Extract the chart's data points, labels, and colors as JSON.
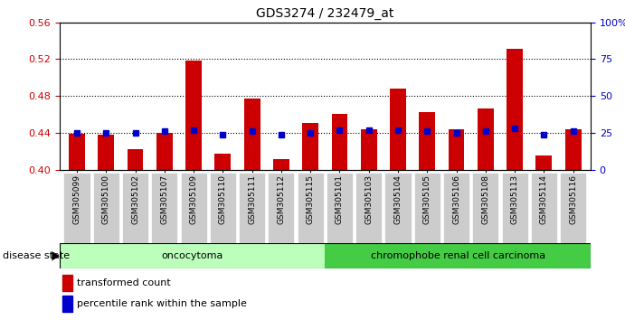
{
  "title": "GDS3274 / 232479_at",
  "samples": [
    "GSM305099",
    "GSM305100",
    "GSM305102",
    "GSM305107",
    "GSM305109",
    "GSM305110",
    "GSM305111",
    "GSM305112",
    "GSM305115",
    "GSM305101",
    "GSM305103",
    "GSM305104",
    "GSM305105",
    "GSM305106",
    "GSM305108",
    "GSM305113",
    "GSM305114",
    "GSM305116"
  ],
  "bar_values": [
    0.439,
    0.438,
    0.422,
    0.44,
    0.519,
    0.417,
    0.477,
    0.411,
    0.451,
    0.461,
    0.444,
    0.488,
    0.463,
    0.444,
    0.466,
    0.531,
    0.415,
    0.444
  ],
  "percentile_values": [
    25,
    25,
    25,
    26,
    27,
    24,
    26,
    24,
    25,
    27,
    27,
    27,
    26,
    25,
    26,
    28,
    24,
    26
  ],
  "bar_bottom": 0.4,
  "bar_color": "#cc0000",
  "percentile_color": "#0000cc",
  "ylim_left": [
    0.4,
    0.56
  ],
  "ylim_right": [
    0,
    100
  ],
  "yticks_left": [
    0.4,
    0.44,
    0.48,
    0.52,
    0.56
  ],
  "yticks_right": [
    0,
    25,
    50,
    75,
    100
  ],
  "ytick_labels_right": [
    "0",
    "25",
    "50",
    "75",
    "100%"
  ],
  "groups": [
    {
      "label": "oncocytoma",
      "start": 0,
      "end": 9,
      "color": "#bbffbb"
    },
    {
      "label": "chromophobe renal cell carcinoma",
      "start": 9,
      "end": 18,
      "color": "#44cc44"
    }
  ],
  "disease_state_label": "disease state",
  "legend_bar_label": "transformed count",
  "legend_pct_label": "percentile rank within the sample",
  "grid_dotted_values": [
    0.44,
    0.48,
    0.52
  ],
  "background_color": "#ffffff",
  "plot_bg_color": "#ffffff",
  "tick_label_color_left": "#cc0000",
  "tick_label_color_right": "#0000cc",
  "tick_label_bg": "#cccccc"
}
